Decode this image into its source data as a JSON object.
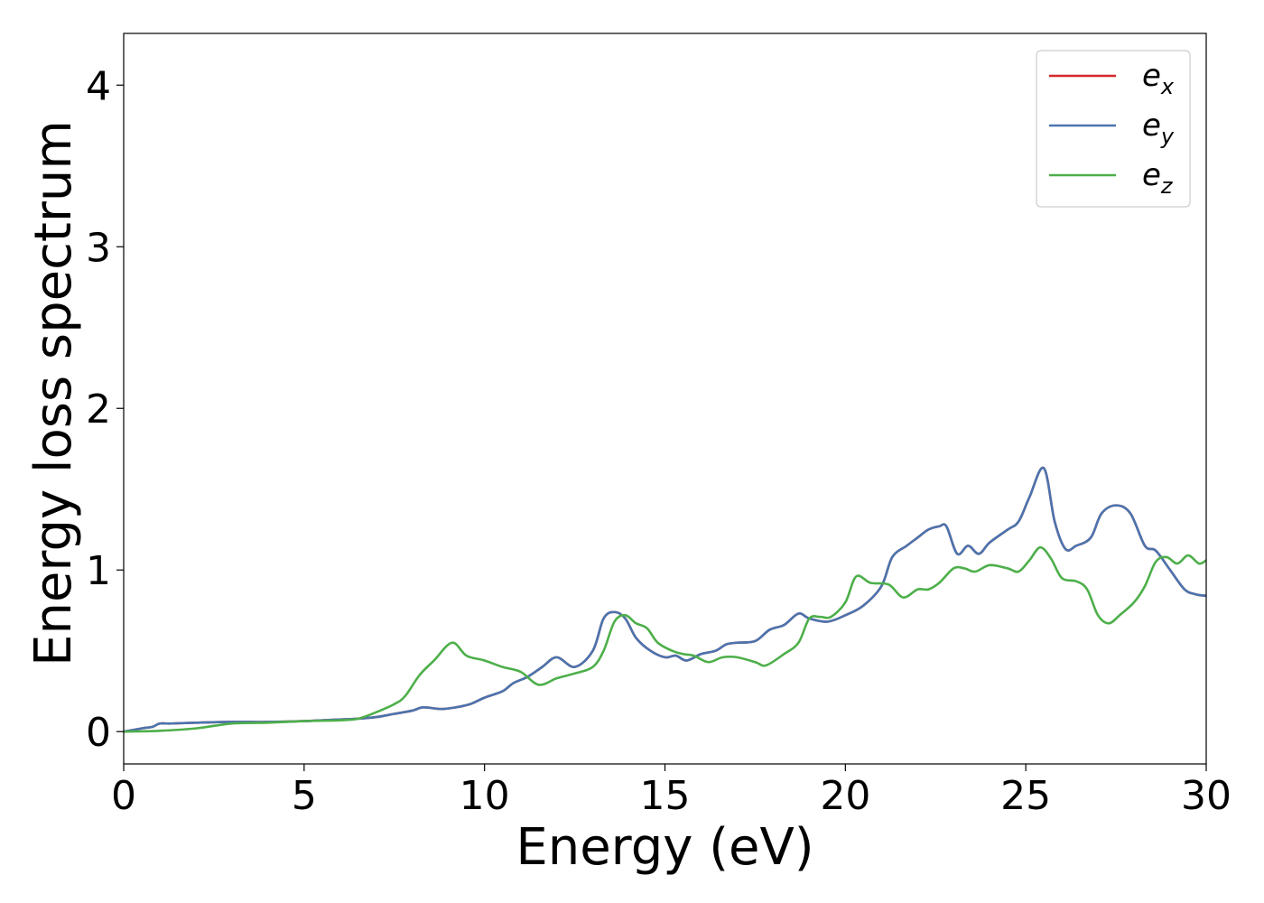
{
  "chart_data": {
    "type": "line",
    "title": "",
    "xlabel": "Energy (eV)",
    "ylabel": "Energy loss spectrum",
    "xlim": [
      0,
      30
    ],
    "ylim": [
      -0.2,
      4.32
    ],
    "xticks": [
      0,
      5,
      10,
      15,
      20,
      25,
      30
    ],
    "yticks": [
      0,
      1,
      2,
      3,
      4
    ],
    "grid": false,
    "legend_position": "top-right",
    "series": [
      {
        "name": "e",
        "subscript": "x",
        "color": "#d62728",
        "x": [
          0,
          0.5,
          0.8,
          1.0,
          1.3,
          2,
          3,
          4,
          5,
          5.5,
          6,
          6.5,
          7,
          7.5,
          8,
          8.3,
          8.8,
          9.2,
          9.6,
          10,
          10.5,
          10.8,
          11.2,
          11.6,
          12,
          12.5,
          13,
          13.3,
          13.6,
          13.9,
          14.2,
          14.6,
          15,
          15.3,
          15.6,
          16,
          16.4,
          16.7,
          17,
          17.5,
          17.9,
          18.3,
          18.7,
          19,
          19.5,
          20,
          20.5,
          21,
          21.3,
          21.7,
          22,
          22.3,
          22.6,
          22.8,
          23.1,
          23.4,
          23.7,
          24,
          24.5,
          24.8,
          25.1,
          25.5,
          25.8,
          26.1,
          26.4,
          26.8,
          27.1,
          27.5,
          27.9,
          28.3,
          28.6,
          29,
          29.4,
          29.7,
          30
        ],
        "y": [
          0,
          0.02,
          0.03,
          0.05,
          0.05,
          0.055,
          0.06,
          0.06,
          0.065,
          0.07,
          0.075,
          0.08,
          0.09,
          0.11,
          0.13,
          0.15,
          0.14,
          0.15,
          0.17,
          0.21,
          0.25,
          0.3,
          0.34,
          0.4,
          0.46,
          0.4,
          0.5,
          0.7,
          0.74,
          0.7,
          0.58,
          0.5,
          0.46,
          0.47,
          0.44,
          0.48,
          0.5,
          0.54,
          0.55,
          0.56,
          0.63,
          0.66,
          0.73,
          0.7,
          0.68,
          0.72,
          0.78,
          0.9,
          1.08,
          1.15,
          1.2,
          1.25,
          1.27,
          1.27,
          1.1,
          1.15,
          1.1,
          1.17,
          1.25,
          1.3,
          1.45,
          1.63,
          1.3,
          1.13,
          1.15,
          1.2,
          1.35,
          1.4,
          1.35,
          1.15,
          1.12,
          1.0,
          0.88,
          0.85,
          0.84
        ]
      },
      {
        "name": "e",
        "subscript": "y",
        "color": "#4a74ae",
        "x": [
          0,
          0.5,
          0.8,
          1.0,
          1.3,
          2,
          3,
          4,
          5,
          5.5,
          6,
          6.5,
          7,
          7.5,
          8,
          8.3,
          8.8,
          9.2,
          9.6,
          10,
          10.5,
          10.8,
          11.2,
          11.6,
          12,
          12.5,
          13,
          13.3,
          13.6,
          13.9,
          14.2,
          14.6,
          15,
          15.3,
          15.6,
          16,
          16.4,
          16.7,
          17,
          17.5,
          17.9,
          18.3,
          18.7,
          19,
          19.5,
          20,
          20.5,
          21,
          21.3,
          21.7,
          22,
          22.3,
          22.6,
          22.8,
          23.1,
          23.4,
          23.7,
          24,
          24.5,
          24.8,
          25.1,
          25.5,
          25.8,
          26.1,
          26.4,
          26.8,
          27.1,
          27.5,
          27.9,
          28.3,
          28.6,
          29,
          29.4,
          29.7,
          30
        ],
        "y": [
          0,
          0.02,
          0.03,
          0.05,
          0.05,
          0.055,
          0.06,
          0.06,
          0.065,
          0.07,
          0.075,
          0.08,
          0.09,
          0.11,
          0.13,
          0.15,
          0.14,
          0.15,
          0.17,
          0.21,
          0.25,
          0.3,
          0.34,
          0.4,
          0.46,
          0.4,
          0.5,
          0.7,
          0.74,
          0.7,
          0.58,
          0.5,
          0.46,
          0.47,
          0.44,
          0.48,
          0.5,
          0.54,
          0.55,
          0.56,
          0.63,
          0.66,
          0.73,
          0.7,
          0.68,
          0.72,
          0.78,
          0.9,
          1.08,
          1.15,
          1.2,
          1.25,
          1.27,
          1.27,
          1.1,
          1.15,
          1.1,
          1.17,
          1.25,
          1.3,
          1.45,
          1.63,
          1.3,
          1.13,
          1.15,
          1.2,
          1.35,
          1.4,
          1.35,
          1.15,
          1.12,
          1.0,
          0.88,
          0.85,
          0.84
        ]
      },
      {
        "name": "e",
        "subscript": "z",
        "color": "#4daf4a",
        "x": [
          0,
          1,
          2,
          3,
          4,
          5,
          6,
          6.5,
          7,
          7.5,
          7.8,
          8.2,
          8.6,
          9.1,
          9.5,
          10,
          10.5,
          11,
          11.5,
          12,
          12.5,
          13,
          13.3,
          13.6,
          13.9,
          14.2,
          14.5,
          14.8,
          15.2,
          15.5,
          15.8,
          16.2,
          16.6,
          17,
          17.5,
          17.8,
          18.3,
          18.7,
          19,
          19.3,
          19.6,
          20,
          20.3,
          20.7,
          21.2,
          21.6,
          22,
          22.3,
          22.6,
          23,
          23.3,
          23.6,
          24,
          24.5,
          24.8,
          25.1,
          25.4,
          25.7,
          26,
          26.4,
          26.7,
          27,
          27.3,
          27.6,
          28,
          28.3,
          28.6,
          28.9,
          29.2,
          29.5,
          29.8,
          30
        ],
        "y": [
          0,
          0.005,
          0.02,
          0.05,
          0.055,
          0.065,
          0.07,
          0.08,
          0.12,
          0.17,
          0.22,
          0.35,
          0.44,
          0.55,
          0.47,
          0.44,
          0.4,
          0.37,
          0.29,
          0.33,
          0.36,
          0.4,
          0.5,
          0.68,
          0.72,
          0.67,
          0.64,
          0.55,
          0.5,
          0.48,
          0.47,
          0.43,
          0.46,
          0.46,
          0.43,
          0.41,
          0.48,
          0.55,
          0.7,
          0.71,
          0.71,
          0.8,
          0.96,
          0.92,
          0.91,
          0.83,
          0.88,
          0.88,
          0.92,
          1.01,
          1.01,
          0.99,
          1.03,
          1.01,
          0.99,
          1.06,
          1.14,
          1.07,
          0.95,
          0.93,
          0.88,
          0.72,
          0.67,
          0.72,
          0.8,
          0.9,
          1.05,
          1.08,
          1.04,
          1.09,
          1.04,
          1.06
        ]
      }
    ]
  }
}
